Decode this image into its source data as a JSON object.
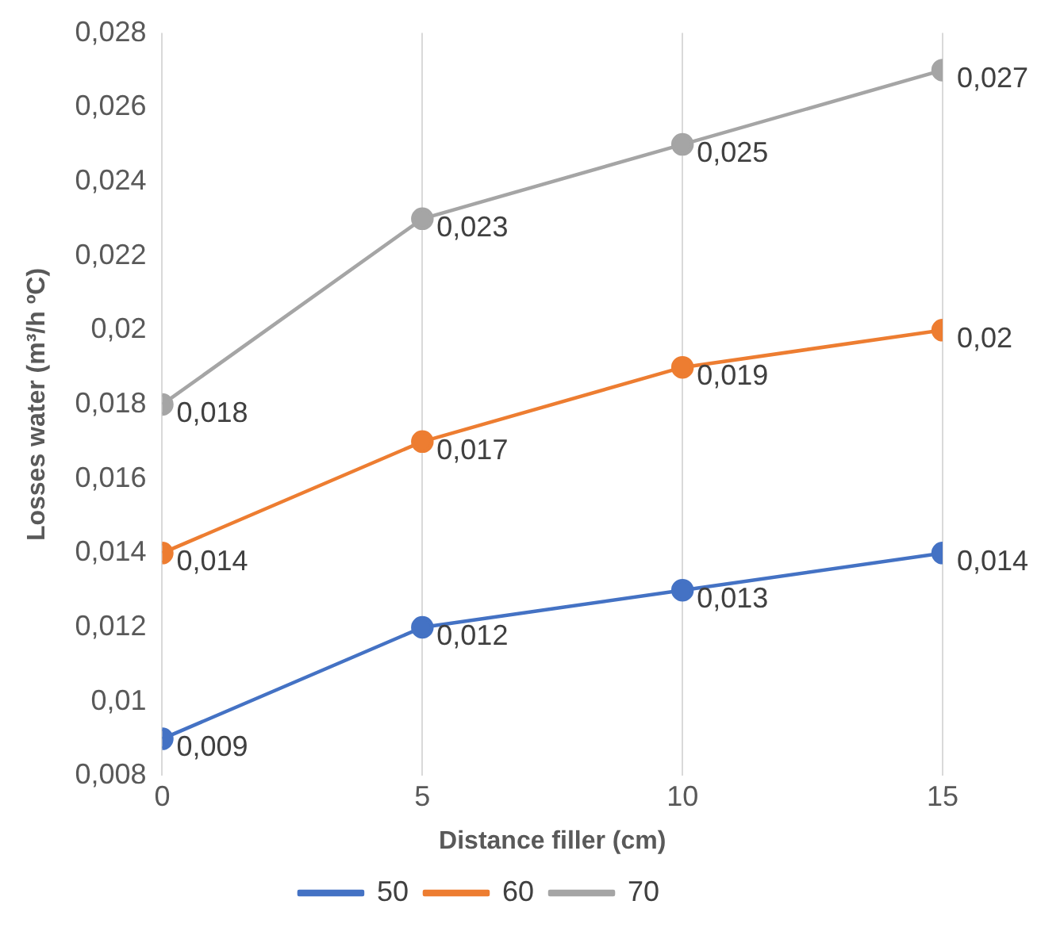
{
  "chart_data": {
    "type": "line",
    "xlabel": "Distance filler (cm)",
    "ylabel": "Losses water (m³/h ºC)",
    "x": [
      0,
      5,
      10,
      15
    ],
    "series": [
      {
        "name": "50",
        "color": "#4472c4",
        "values": [
          0.009,
          0.012,
          0.013,
          0.014
        ],
        "value_labels": [
          "0,009",
          "0,012",
          "0,013",
          "0,014"
        ]
      },
      {
        "name": "60",
        "color": "#ed7d31",
        "values": [
          0.014,
          0.017,
          0.019,
          0.02
        ],
        "value_labels": [
          "0,014",
          "0,017",
          "0,019",
          "0,02"
        ]
      },
      {
        "name": "70",
        "color": "#a5a5a5",
        "values": [
          0.018,
          0.023,
          0.025,
          0.027
        ],
        "value_labels": [
          "0,018",
          "0,023",
          "0,025",
          "0,027"
        ]
      }
    ],
    "xlim": [
      0,
      15
    ],
    "xticks": [
      0,
      5,
      10,
      15
    ],
    "ylim": [
      0.008,
      0.028
    ],
    "yticks": [
      {
        "value": 0.008,
        "label": "0,008"
      },
      {
        "value": 0.01,
        "label": "0,01"
      },
      {
        "value": 0.012,
        "label": "0,012"
      },
      {
        "value": 0.014,
        "label": "0,014"
      },
      {
        "value": 0.016,
        "label": "0,016"
      },
      {
        "value": 0.018,
        "label": "0,018"
      },
      {
        "value": 0.02,
        "label": "0,02"
      },
      {
        "value": 0.022,
        "label": "0,022"
      },
      {
        "value": 0.024,
        "label": "0,024"
      },
      {
        "value": 0.026,
        "label": "0,026"
      },
      {
        "value": 0.028,
        "label": "0,028"
      }
    ],
    "grid": "x",
    "legend": "bottom",
    "marker": "circle",
    "line_style": "solid"
  }
}
